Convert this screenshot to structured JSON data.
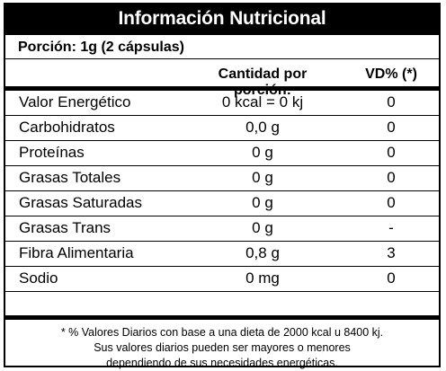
{
  "title": "Información Nutricional",
  "portion": "Porción: 1g (2 cápsulas)",
  "headers": {
    "amount": "Cantidad por porción:",
    "dv": "VD% (*)"
  },
  "rows": [
    {
      "name": "Valor Energético",
      "amount": "0 kcal = 0 kj",
      "dv": "0"
    },
    {
      "name": "Carbohidratos",
      "amount": "0,0 g",
      "dv": "0"
    },
    {
      "name": "Proteínas",
      "amount": "0 g",
      "dv": "0"
    },
    {
      "name": "Grasas Totales",
      "amount": "0 g",
      "dv": "0"
    },
    {
      "name": "Grasas Saturadas",
      "amount": "0 g",
      "dv": "0"
    },
    {
      "name": "Grasas Trans",
      "amount": "0 g",
      "dv": "-"
    },
    {
      "name": "Fibra Alimentaria",
      "amount": "0,8 g",
      "dv": "3"
    },
    {
      "name": "Sodio",
      "amount": "0 mg",
      "dv": "0"
    }
  ],
  "footnote": [
    "* % Valores Diarios con base a una dieta de 2000 kcal u 8400 kj.",
    "Sus valores diarios pueden ser mayores o menores",
    "dependiendo de sus necesidades energéticas."
  ]
}
